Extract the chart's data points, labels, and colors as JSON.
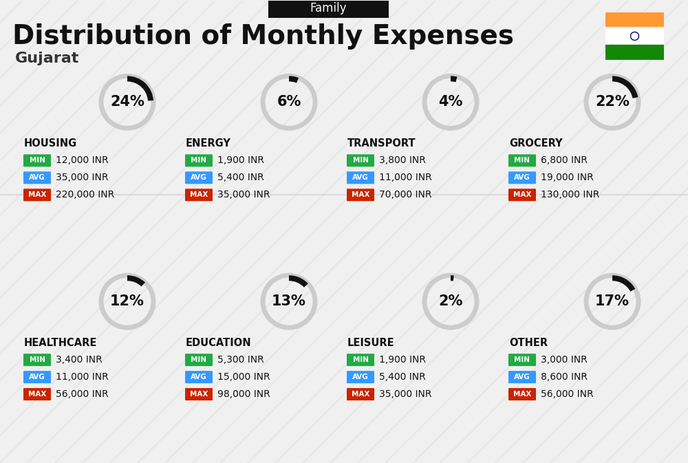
{
  "title": "Distribution of Monthly Expenses",
  "subtitle": "Family",
  "location": "Gujarat",
  "bg_color": "#f0f0f0",
  "categories": [
    {
      "name": "HOUSING",
      "pct": 24,
      "min_val": "12,000 INR",
      "avg_val": "35,000 INR",
      "max_val": "220,000 INR",
      "row": 0,
      "col": 0
    },
    {
      "name": "ENERGY",
      "pct": 6,
      "min_val": "1,900 INR",
      "avg_val": "5,400 INR",
      "max_val": "35,000 INR",
      "row": 0,
      "col": 1
    },
    {
      "name": "TRANSPORT",
      "pct": 4,
      "min_val": "3,800 INR",
      "avg_val": "11,000 INR",
      "max_val": "70,000 INR",
      "row": 0,
      "col": 2
    },
    {
      "name": "GROCERY",
      "pct": 22,
      "min_val": "6,800 INR",
      "avg_val": "19,000 INR",
      "max_val": "130,000 INR",
      "row": 0,
      "col": 3
    },
    {
      "name": "HEALTHCARE",
      "pct": 12,
      "min_val": "3,400 INR",
      "avg_val": "11,000 INR",
      "max_val": "56,000 INR",
      "row": 1,
      "col": 0
    },
    {
      "name": "EDUCATION",
      "pct": 13,
      "min_val": "5,300 INR",
      "avg_val": "15,000 INR",
      "max_val": "98,000 INR",
      "row": 1,
      "col": 1
    },
    {
      "name": "LEISURE",
      "pct": 2,
      "min_val": "1,900 INR",
      "avg_val": "5,400 INR",
      "max_val": "35,000 INR",
      "row": 1,
      "col": 2
    },
    {
      "name": "OTHER",
      "pct": 17,
      "min_val": "3,000 INR",
      "avg_val": "8,600 INR",
      "max_val": "56,000 INR",
      "row": 1,
      "col": 3
    }
  ],
  "min_color": "#22aa44",
  "avg_color": "#3399ff",
  "max_color": "#cc2200",
  "label_color": "#ffffff",
  "arc_color_active": "#111111",
  "arc_color_inactive": "#cccccc",
  "india_flag_colors": [
    "#FF9933",
    "#ffffff",
    "#138808"
  ],
  "header_bg": "#111111",
  "header_text": "#ffffff"
}
